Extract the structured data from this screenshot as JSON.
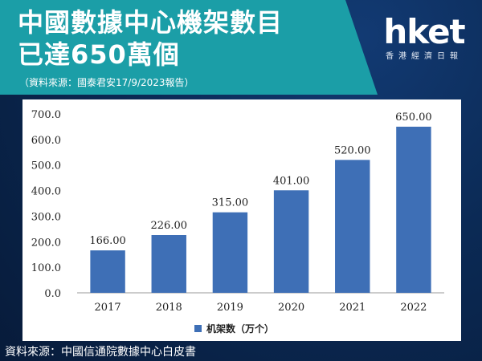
{
  "header": {
    "title_line1": "中國數據中心機架數目",
    "title_line2": "已達650萬個",
    "source_note": "（資料來源：國泰君安17/9/2023報告）"
  },
  "logo": {
    "main": "hket",
    "sub": "香港經濟日報"
  },
  "footer": {
    "source": "資料來源：中國信通院數據中心白皮書"
  },
  "colors": {
    "teal": "#1b9ea7",
    "navy": "#0b2a55",
    "bar": "#3e6fb6"
  },
  "chart_data": {
    "type": "bar",
    "categories": [
      "2017",
      "2018",
      "2019",
      "2020",
      "2021",
      "2022"
    ],
    "series": [
      {
        "name": "机架数（万个）",
        "values": [
          166.0,
          226.0,
          315.0,
          401.0,
          520.0,
          650.0
        ]
      }
    ],
    "value_labels": [
      "166.00",
      "226.00",
      "315.00",
      "401.00",
      "520.00",
      "650.00"
    ],
    "y_ticks": [
      "0.0",
      "100.0",
      "200.0",
      "300.0",
      "400.0",
      "500.0",
      "600.0",
      "700.0"
    ],
    "ylim": [
      0,
      700
    ],
    "grid": false,
    "legend_position": "bottom-left"
  }
}
